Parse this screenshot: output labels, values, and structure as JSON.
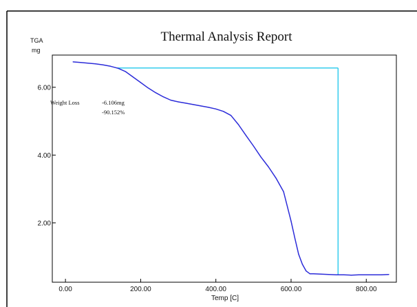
{
  "colors": {
    "frame": "#000000",
    "curve": "#2b2bd9",
    "marker": "#33ccee",
    "text": "#111111"
  },
  "chart_data": {
    "type": "line",
    "title": "Thermal Analysis Report",
    "y_axis_name": "TGA",
    "y_unit": "mg",
    "xlabel": "Temp  [C]",
    "xlim": [
      -35,
      880
    ],
    "ylim": [
      0.25,
      6.95
    ],
    "x_ticks": [
      {
        "value": 0,
        "label": "0.00"
      },
      {
        "value": 200,
        "label": "200.00"
      },
      {
        "value": 400,
        "label": "400.00"
      },
      {
        "value": 600,
        "label": "600.00"
      },
      {
        "value": 800,
        "label": "800.00"
      }
    ],
    "y_ticks": [
      {
        "value": 2,
        "label": "2.00"
      },
      {
        "value": 4,
        "label": "4.00"
      },
      {
        "value": 6,
        "label": "6.00"
      }
    ],
    "grid": false,
    "series": [
      {
        "x": [
          20,
          40,
          60,
          80,
          100,
          120,
          140,
          160,
          180,
          200,
          220,
          240,
          260,
          280,
          300,
          320,
          340,
          360,
          380,
          400,
          420,
          440,
          460,
          480,
          500,
          520,
          540,
          560,
          580,
          600,
          610,
          620,
          630,
          640,
          650,
          660,
          680,
          700,
          720,
          740,
          760,
          780,
          800,
          820,
          840,
          860
        ],
        "y": [
          6.75,
          6.73,
          6.71,
          6.69,
          6.66,
          6.62,
          6.56,
          6.46,
          6.3,
          6.14,
          5.98,
          5.84,
          5.72,
          5.62,
          5.57,
          5.53,
          5.49,
          5.45,
          5.41,
          5.36,
          5.29,
          5.17,
          4.9,
          4.58,
          4.27,
          3.94,
          3.65,
          3.32,
          2.92,
          2.05,
          1.55,
          1.08,
          0.78,
          0.58,
          0.5,
          0.5,
          0.49,
          0.48,
          0.47,
          0.47,
          0.46,
          0.47,
          0.47,
          0.47,
          0.47,
          0.48
        ]
      }
    ],
    "step_marker": {
      "x_start": 135,
      "x_end": 725,
      "upper_y": 6.57,
      "lower_y": 0.47
    },
    "annotation": {
      "label": "Weight Loss",
      "mass_change": "-6.106mg",
      "percent_change": "-90.152%"
    }
  }
}
